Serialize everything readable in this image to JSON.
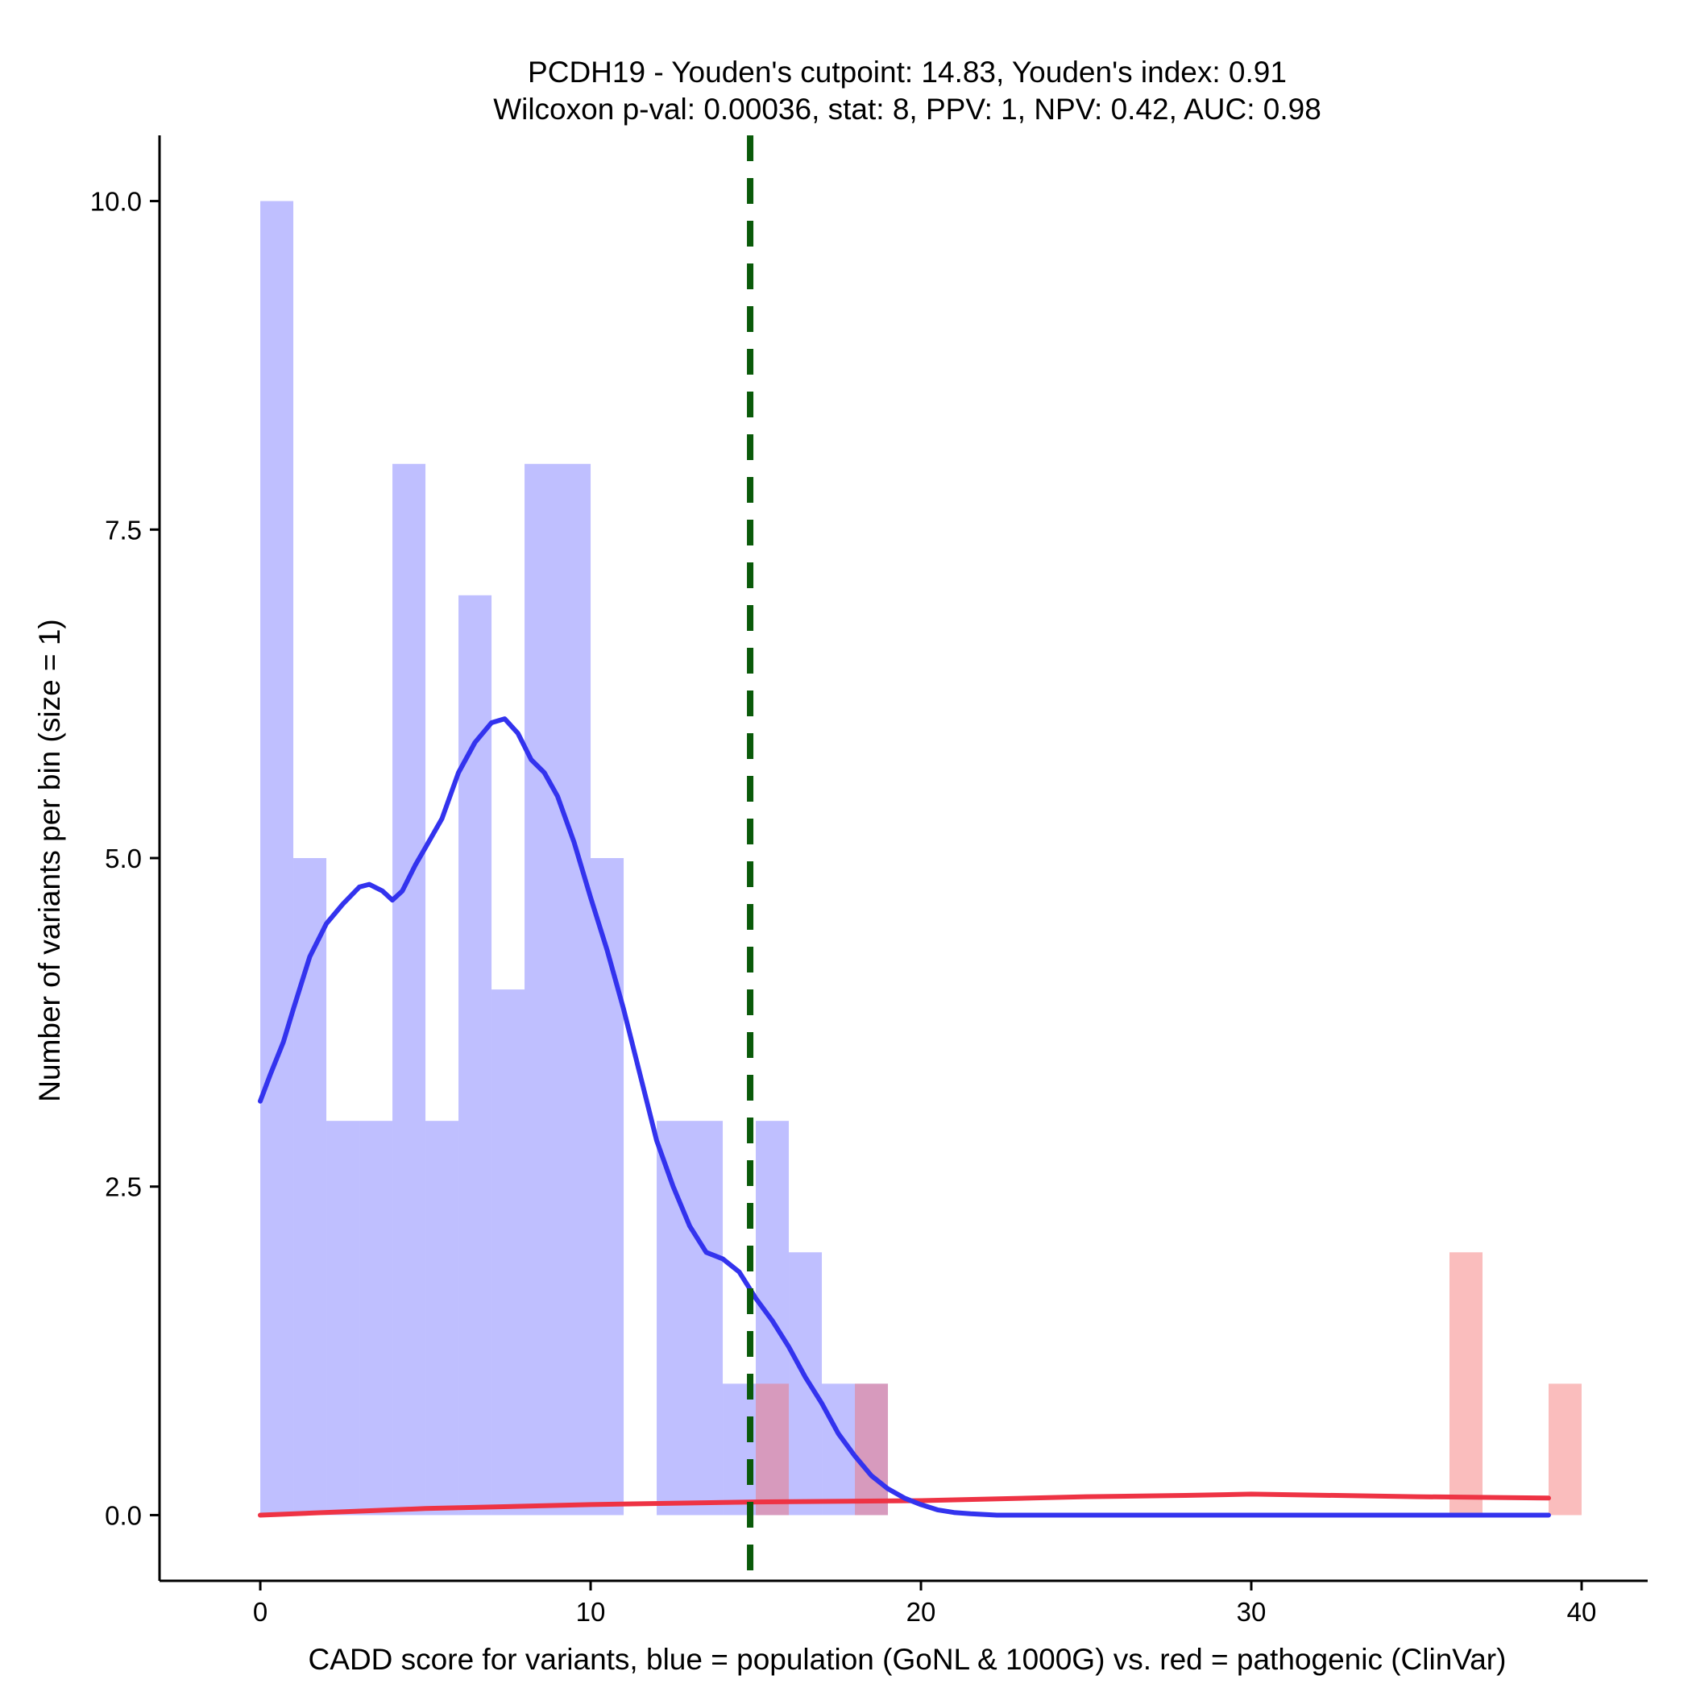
{
  "chart_data": {
    "type": "bar",
    "title": "PCDH19 - Youden's cutpoint: 14.83, Youden's index: 0.91",
    "subtitle": "Wilcoxon p-val: 0.00036, stat: 8, PPV: 1, NPV: 0.42, AUC: 0.98",
    "xlabel": "CADD score for variants, blue = population (GoNL & 1000G) vs. red = pathogenic (ClinVar)",
    "ylabel": "Number of variants per bin (size = 1)",
    "xlim": [
      -3.05,
      42
    ],
    "ylim": [
      -0.5,
      10.5
    ],
    "x_ticks": [
      0,
      10,
      20,
      30,
      40
    ],
    "x_tick_labels": [
      "0",
      "10",
      "20",
      "30",
      "40"
    ],
    "y_ticks": [
      0,
      2.5,
      5,
      7.5,
      10
    ],
    "y_tick_labels": [
      "0.0",
      "2.5",
      "5.0",
      "7.5",
      "10.0"
    ],
    "bin_size": 1,
    "grid": false,
    "cutpoint": 14.83,
    "series": [
      {
        "role": "population",
        "color": "#8080ff",
        "opacity": 0.5,
        "bins": [
          {
            "start": 0,
            "count": 10
          },
          {
            "start": 1,
            "count": 5
          },
          {
            "start": 2,
            "count": 3
          },
          {
            "start": 3,
            "count": 3
          },
          {
            "start": 4,
            "count": 8
          },
          {
            "start": 5,
            "count": 3
          },
          {
            "start": 6,
            "count": 7
          },
          {
            "start": 7,
            "count": 4
          },
          {
            "start": 8,
            "count": 8
          },
          {
            "start": 9,
            "count": 8
          },
          {
            "start": 10,
            "count": 5
          },
          {
            "start": 12,
            "count": 3
          },
          {
            "start": 13,
            "count": 3
          },
          {
            "start": 14,
            "count": 1
          },
          {
            "start": 15,
            "count": 3
          },
          {
            "start": 16,
            "count": 2
          },
          {
            "start": 17,
            "count": 1
          },
          {
            "start": 18,
            "count": 1
          }
        ]
      },
      {
        "role": "pathogenic",
        "color": "#f46d6d",
        "opacity": 0.45,
        "bins": [
          {
            "start": 15,
            "count": 1
          },
          {
            "start": 18,
            "count": 1
          },
          {
            "start": 36,
            "count": 2
          },
          {
            "start": 39,
            "count": 1
          }
        ]
      }
    ],
    "density_curves": [
      {
        "role": "population",
        "color": "#3333ee",
        "x": [
          0,
          0.3,
          0.7,
          1.0,
          1.5,
          2.0,
          2.5,
          3.0,
          3.3,
          3.7,
          4.0,
          4.3,
          4.7,
          5.0,
          5.5,
          6.0,
          6.5,
          7.0,
          7.4,
          7.8,
          8.2,
          8.6,
          9.0,
          9.5,
          10.0,
          10.5,
          11.0,
          11.5,
          12.0,
          12.5,
          13.0,
          13.5,
          14.0,
          14.5,
          15.0,
          15.5,
          16.0,
          16.5,
          17.0,
          17.5,
          18.0,
          18.5,
          19.0,
          19.5,
          20.0,
          20.5,
          21.0,
          21.5,
          22.3,
          25,
          30,
          35,
          39
        ],
        "y": [
          3.15,
          3.35,
          3.6,
          3.85,
          4.25,
          4.5,
          4.65,
          4.78,
          4.8,
          4.75,
          4.68,
          4.75,
          4.95,
          5.08,
          5.3,
          5.65,
          5.88,
          6.03,
          6.06,
          5.95,
          5.75,
          5.65,
          5.47,
          5.12,
          4.7,
          4.3,
          3.85,
          3.35,
          2.85,
          2.5,
          2.2,
          2.0,
          1.95,
          1.85,
          1.65,
          1.48,
          1.28,
          1.05,
          0.85,
          0.62,
          0.45,
          0.3,
          0.2,
          0.13,
          0.08,
          0.04,
          0.02,
          0.01,
          0,
          0,
          0,
          0,
          0
        ]
      },
      {
        "role": "pathogenic",
        "color": "#ee3344",
        "x": [
          0,
          5,
          10,
          15,
          20,
          25,
          28,
          30,
          35,
          39
        ],
        "y": [
          0.0,
          0.05,
          0.08,
          0.1,
          0.11,
          0.14,
          0.15,
          0.16,
          0.14,
          0.13
        ]
      }
    ],
    "cutpoint_line": {
      "color": "#0a5a0a",
      "style": "dashed"
    }
  }
}
